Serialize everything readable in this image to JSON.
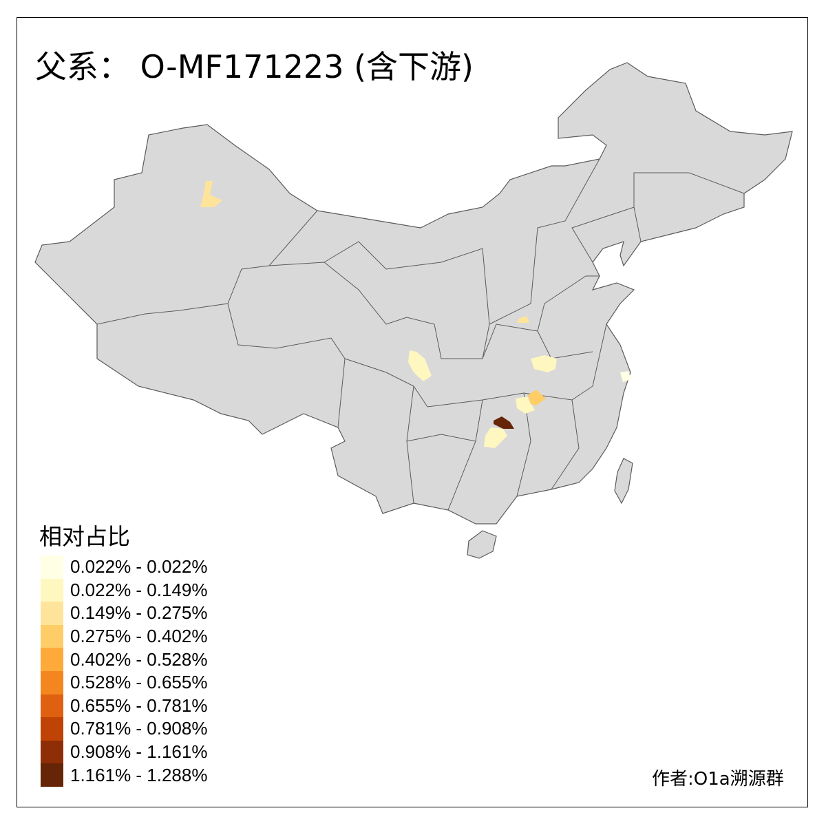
{
  "title": "父系： O-MF171223 (含下游)",
  "legend": {
    "title": "相对占比",
    "items": [
      {
        "label": "0.022% - 0.022%",
        "color": "#FFFFE5"
      },
      {
        "label": "0.022% - 0.149%",
        "color": "#FFF7C0"
      },
      {
        "label": "0.149% - 0.275%",
        "color": "#FEE49A"
      },
      {
        "label": "0.275% - 0.402%",
        "color": "#FECD68"
      },
      {
        "label": "0.402% - 0.528%",
        "color": "#FEAA3A"
      },
      {
        "label": "0.528% - 0.655%",
        "color": "#F4861F"
      },
      {
        "label": "0.655% - 0.781%",
        "color": "#DE6010"
      },
      {
        "label": "0.781% - 0.908%",
        "color": "#BF4305"
      },
      {
        "label": "0.908% - 1.161%",
        "color": "#8E2E06"
      },
      {
        "label": "1.161% - 1.288%",
        "color": "#662506"
      }
    ]
  },
  "credit": "作者:O1a溯源群",
  "colors": {
    "land": "#D9D9D9",
    "border": "#5A5A5A",
    "nodata": "#D9D9D9"
  }
}
